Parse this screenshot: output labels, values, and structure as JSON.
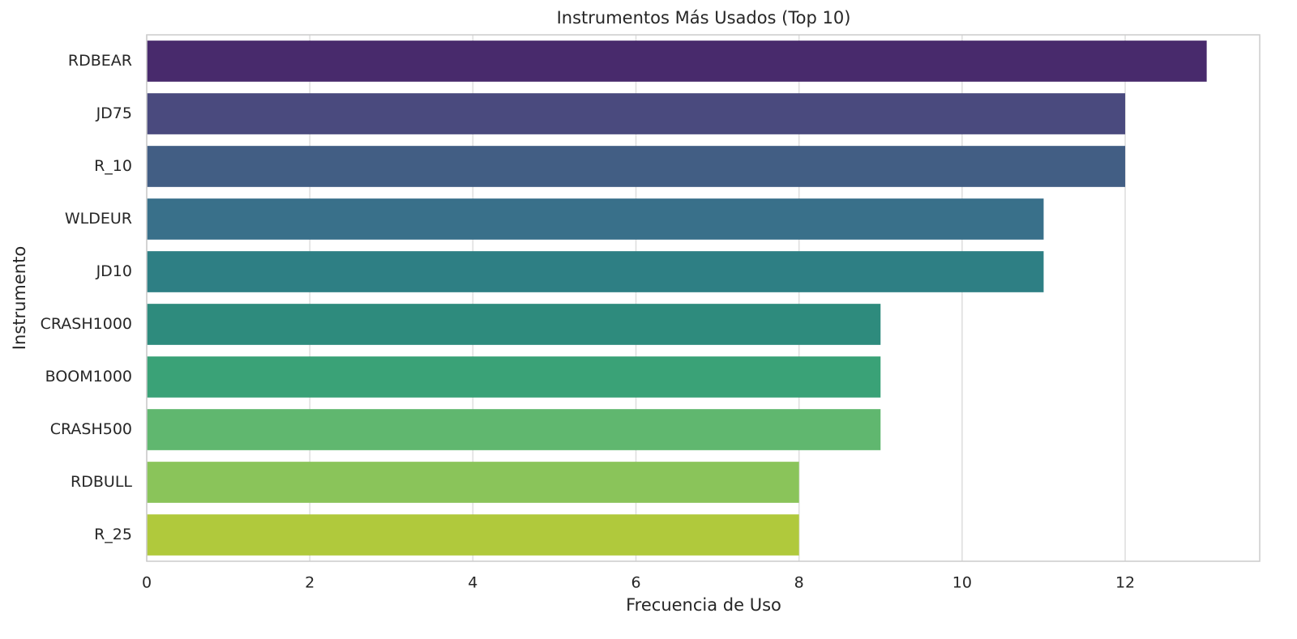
{
  "chart_data": {
    "type": "bar",
    "orientation": "horizontal",
    "title": "Instrumentos Más Usados (Top 10)",
    "x_label": "Frecuencia de Uso",
    "y_label": "Instrumento",
    "categories": [
      "RDBEAR",
      "JD75",
      "R_10",
      "WLDEUR",
      "JD10",
      "CRASH1000",
      "BOOM1000",
      "CRASH500",
      "RDBULL",
      "R_25"
    ],
    "values": [
      13,
      12,
      12,
      11,
      11,
      9,
      9,
      9,
      8,
      8
    ],
    "colors": [
      "#482a6c",
      "#4a4a7e",
      "#425e84",
      "#39708a",
      "#2e7f84",
      "#2e8b7d",
      "#3aa277",
      "#60b76f",
      "#8ac45a",
      "#b0c93c"
    ],
    "xlim": [
      0,
      13.65
    ],
    "xticks": [
      0,
      2,
      4,
      6,
      8,
      10,
      12
    ],
    "grid": true
  }
}
